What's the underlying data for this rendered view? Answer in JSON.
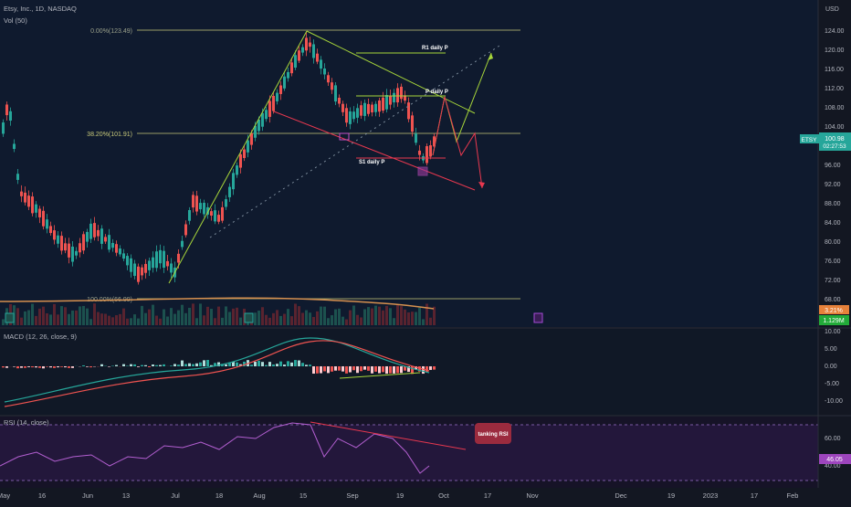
{
  "header": {
    "symbol": "Etsy, Inc., 1D, NASDAQ",
    "volume_label": "Vol (50)",
    "currency": "USD"
  },
  "price_pane": {
    "y_ticks": [
      "124.00",
      "120.00",
      "116.00",
      "112.00",
      "108.00",
      "104.00",
      "100.00",
      "96.00",
      "92.00",
      "88.00",
      "84.00",
      "80.00",
      "76.00",
      "72.00",
      "68.00"
    ],
    "fib_top_label": "0.00%(123.49)",
    "fib_mid_label": "38.20%(101.91)",
    "fib_bottom_label": "100.00%(66.99)",
    "r1_label": "R1 daily P",
    "p_label": "P daily P",
    "s1_label": "S1 daily P",
    "ticker_badge": "ETSY",
    "last_price": "100.98",
    "countdown": "02:27:53",
    "badge_orange": "3.21%",
    "badge_green": "1.129M",
    "colors": {
      "up": "#26a69a",
      "down": "#ef5350",
      "fib": "#c7c97a",
      "pattern": "#a7d63a",
      "pattern_red": "#e8384f"
    }
  },
  "macd_pane": {
    "label": "MACD (12, 26, close, 9)",
    "y_ticks": [
      "10.00",
      "5.00",
      "0.00",
      "-5.00",
      "-10.00"
    ]
  },
  "rsi_pane": {
    "label": "RSI (14, close)",
    "y_ticks": [
      "60.00",
      "40.00"
    ],
    "value": "46.05",
    "callout": "tanking RSI"
  },
  "time_axis": {
    "labels": [
      "May",
      "16",
      "Jun",
      "13",
      "Jul",
      "18",
      "Aug",
      "15",
      "Sep",
      "19",
      "Oct",
      "17",
      "Nov",
      "Dec",
      "19",
      "2023",
      "17",
      "Feb"
    ]
  }
}
